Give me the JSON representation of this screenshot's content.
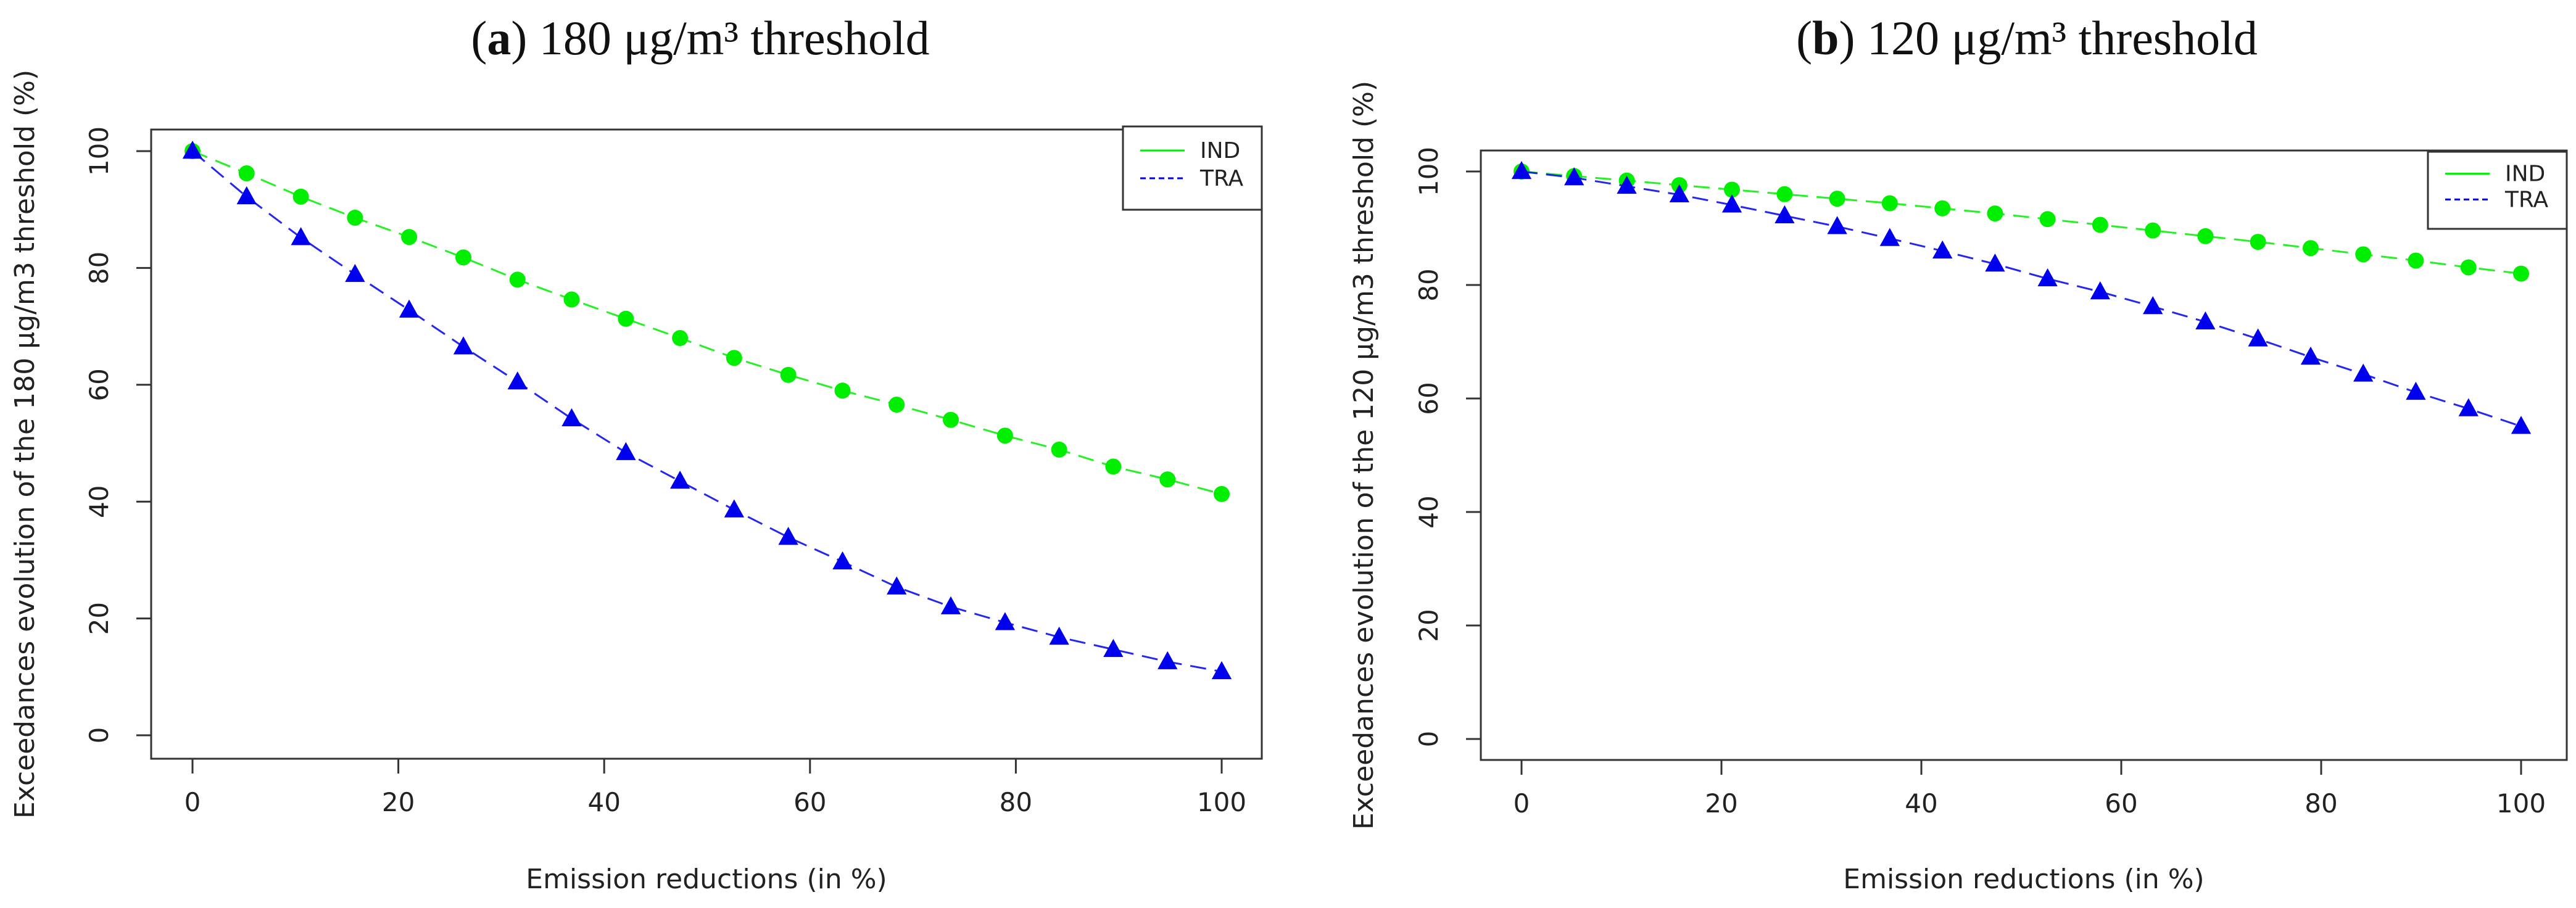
{
  "chart_data": [
    {
      "type": "line",
      "panel_letter": "a",
      "title": "180 μg/m³ threshold",
      "xlabel": "Emission reductions (in %)",
      "ylabel": "Exceedances evolution of the 180 μg/m3 threshold (%)",
      "xlim": [
        0,
        100
      ],
      "ylim": [
        0,
        100
      ],
      "xticks": [
        0,
        20,
        40,
        60,
        80,
        100
      ],
      "yticks": [
        0,
        20,
        40,
        60,
        80,
        100
      ],
      "legend_position": "top-right",
      "x": [
        0,
        5.26,
        10.53,
        15.79,
        21.05,
        26.32,
        31.58,
        36.84,
        42.11,
        47.37,
        52.63,
        57.89,
        63.16,
        68.42,
        73.68,
        78.95,
        84.21,
        89.47,
        94.74,
        100
      ],
      "series": [
        {
          "name": "IND",
          "color": "#00ee00",
          "marker": "circle",
          "values": [
            100,
            96.2,
            92.2,
            88.6,
            85.3,
            81.8,
            78.0,
            74.6,
            71.3,
            68.0,
            64.6,
            61.7,
            59.0,
            56.6,
            54.0,
            51.3,
            48.9,
            46.0,
            43.8,
            41.3
          ]
        },
        {
          "name": "TRA",
          "color": "#0000ee",
          "marker": "triangle",
          "values": [
            100,
            92.2,
            85.2,
            78.9,
            72.8,
            66.5,
            60.5,
            54.2,
            48.4,
            43.5,
            38.6,
            33.9,
            29.7,
            25.4,
            22.0,
            19.3,
            16.8,
            14.7,
            12.6,
            10.9
          ]
        }
      ]
    },
    {
      "type": "line",
      "panel_letter": "b",
      "title": "120 μg/m³ threshold",
      "xlabel": "Emission reductions (in %)",
      "ylabel": "Exceedances evolution of the 120 μg/m3 threshold (%)",
      "xlim": [
        0,
        100
      ],
      "ylim": [
        0,
        100
      ],
      "xticks": [
        0,
        20,
        40,
        60,
        80,
        100
      ],
      "yticks": [
        0,
        20,
        40,
        60,
        80,
        100
      ],
      "legend_position": "top-right",
      "x": [
        0,
        5.26,
        10.53,
        15.79,
        21.05,
        26.32,
        31.58,
        36.84,
        42.11,
        47.37,
        52.63,
        57.89,
        63.16,
        68.42,
        73.68,
        78.95,
        84.21,
        89.47,
        94.74,
        100
      ],
      "series": [
        {
          "name": "IND",
          "color": "#00ee00",
          "marker": "circle",
          "values": [
            100,
            99.2,
            98.4,
            97.6,
            96.8,
            96.0,
            95.2,
            94.4,
            93.5,
            92.6,
            91.6,
            90.6,
            89.6,
            88.6,
            87.6,
            86.5,
            85.4,
            84.3,
            83.1,
            82.0
          ]
        },
        {
          "name": "TRA",
          "color": "#0000ee",
          "marker": "triangle",
          "values": [
            100,
            98.9,
            97.4,
            95.9,
            94.1,
            92.2,
            90.3,
            88.2,
            86.0,
            83.7,
            81.1,
            78.8,
            76.2,
            73.5,
            70.5,
            67.3,
            64.3,
            61.1,
            58.2,
            55.1
          ]
        }
      ]
    }
  ]
}
